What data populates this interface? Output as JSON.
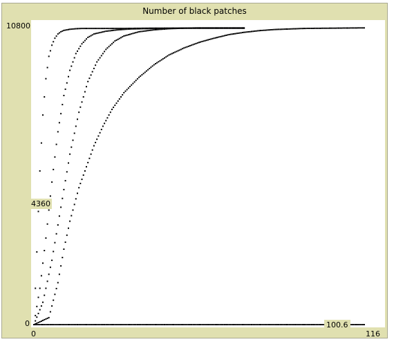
{
  "chart_data": {
    "type": "scatter",
    "title": "Number of black patches",
    "xlabel": "",
    "ylabel": "",
    "xlim": [
      0,
      116
    ],
    "ylim": [
      0,
      10800
    ],
    "x_tick_labels": [
      "0",
      "116"
    ],
    "y_tick_labels": [
      "0",
      "10800"
    ],
    "readout_y": "4360",
    "readout_x": "100.6",
    "grid": false,
    "legend": "none",
    "point_color": "#000000",
    "series": [
      {
        "x": [
          0,
          1,
          2,
          3,
          4,
          5,
          6,
          7,
          8,
          9,
          10,
          12,
          14,
          16,
          18,
          20,
          25,
          30,
          40,
          50,
          60,
          70
        ],
        "y": [
          0,
          2600,
          5500,
          7500,
          8800,
          9600,
          10000,
          10250,
          10400,
          10480,
          10530,
          10570,
          10590,
          10600,
          10600,
          10600,
          10600,
          10600,
          10610,
          10610,
          10610,
          10610
        ]
      },
      {
        "x": [
          0,
          2,
          4,
          6,
          8,
          10,
          12,
          14,
          16,
          18,
          20,
          24,
          28,
          32,
          40,
          50,
          60,
          70
        ],
        "y": [
          0,
          1300,
          3100,
          5100,
          6900,
          8200,
          9100,
          9700,
          10050,
          10280,
          10400,
          10500,
          10550,
          10580,
          10600,
          10610,
          10610,
          10610
        ]
      },
      {
        "x": [
          0,
          3,
          6,
          9,
          12,
          15,
          18,
          21,
          24,
          27,
          30,
          35,
          40,
          45,
          50,
          55,
          60,
          65,
          70
        ],
        "y": [
          0,
          800,
          2300,
          4200,
          6100,
          7600,
          8700,
          9400,
          9850,
          10150,
          10330,
          10480,
          10550,
          10590,
          10610,
          10620,
          10620,
          10620,
          10620
        ]
      },
      {
        "x": [
          0,
          5,
          8,
          10,
          12,
          15,
          18,
          20,
          23,
          26,
          30,
          35,
          40,
          45,
          50,
          55,
          60,
          65,
          70,
          75,
          80,
          90,
          100,
          110
        ],
        "y": [
          0,
          250,
          1500,
          2700,
          3700,
          4900,
          5800,
          6400,
          7100,
          7700,
          8300,
          8850,
          9300,
          9650,
          9900,
          10100,
          10250,
          10380,
          10460,
          10520,
          10560,
          10600,
          10610,
          10620
        ]
      },
      {
        "x": [
          0,
          10,
          20,
          30,
          40,
          50,
          60,
          70,
          80,
          90,
          100,
          110
        ],
        "y": [
          0,
          0,
          0,
          0,
          0,
          0,
          0,
          0,
          0,
          0,
          0,
          0
        ]
      }
    ]
  }
}
